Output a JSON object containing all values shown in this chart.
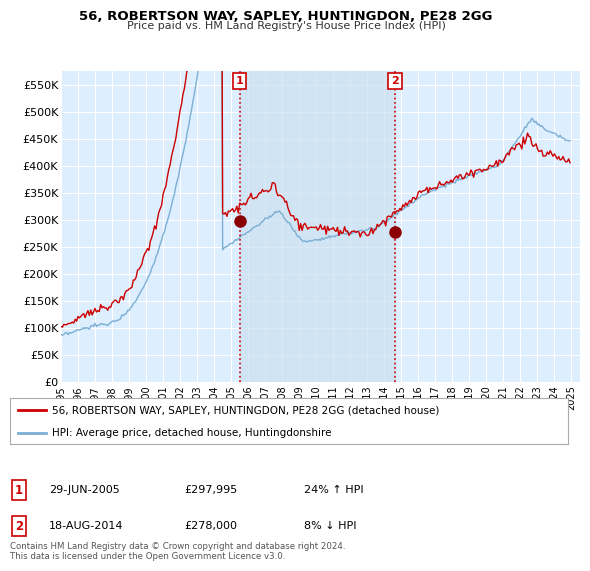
{
  "title": "56, ROBERTSON WAY, SAPLEY, HUNTINGDON, PE28 2GG",
  "subtitle": "Price paid vs. HM Land Registry's House Price Index (HPI)",
  "red_line_color": "#cc0000",
  "blue_line_color": "#7bafd4",
  "shade_color": "#cce0f0",
  "marker1_date": 2005.49,
  "marker1_value": 297995,
  "marker1_label": "1",
  "marker2_date": 2014.63,
  "marker2_value": 278000,
  "marker2_label": "2",
  "vline_color": "#cc0000",
  "legend_line1": "56, ROBERTSON WAY, SAPLEY, HUNTINGDON, PE28 2GG (detached house)",
  "legend_line2": "HPI: Average price, detached house, Huntingdonshire",
  "ann1_date": "29-JUN-2005",
  "ann1_price": "£297,995",
  "ann1_hpi": "24% ↑ HPI",
  "ann2_date": "18-AUG-2014",
  "ann2_price": "£278,000",
  "ann2_hpi": "8% ↓ HPI",
  "footer": "Contains HM Land Registry data © Crown copyright and database right 2024.\nThis data is licensed under the Open Government Licence v3.0.",
  "background_color": "#ffffff",
  "plot_bg_color": "#ddeeff",
  "grid_color": "#ffffff",
  "xlim_start": 1995.0,
  "xlim_end": 2025.5,
  "ylim_min": 0,
  "ylim_max": 575000,
  "yticks": [
    0,
    50000,
    100000,
    150000,
    200000,
    250000,
    300000,
    350000,
    400000,
    450000,
    500000,
    550000
  ],
  "ytick_labels": [
    "£0",
    "£50K",
    "£100K",
    "£150K",
    "£200K",
    "£250K",
    "£300K",
    "£350K",
    "£400K",
    "£450K",
    "£500K",
    "£550K"
  ],
  "xticks": [
    1995,
    1996,
    1997,
    1998,
    1999,
    2000,
    2001,
    2002,
    2003,
    2004,
    2005,
    2006,
    2007,
    2008,
    2009,
    2010,
    2011,
    2012,
    2013,
    2014,
    2015,
    2016,
    2017,
    2018,
    2019,
    2020,
    2021,
    2022,
    2023,
    2024,
    2025
  ]
}
